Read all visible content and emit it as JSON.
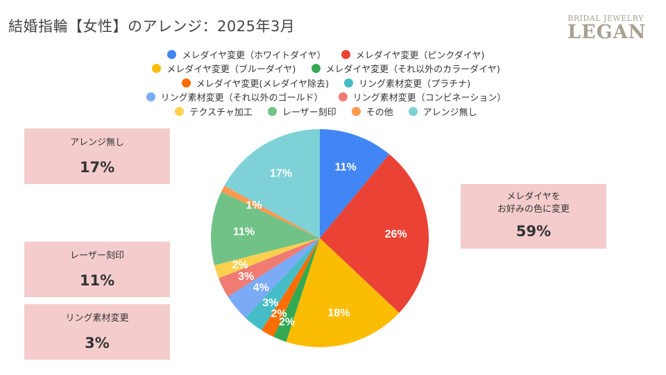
{
  "title": "結婚指輪【女性】のアレンジ：2025年3月",
  "logo": {
    "sub": "BRIDAL JEWELRY",
    "main": "LEGAN"
  },
  "callouts": [
    {
      "label": "アレンジ無し",
      "value": "17%"
    },
    {
      "label": "レーザー刻印",
      "value": "11%"
    },
    {
      "label": "リング素材変更",
      "value": "3%"
    },
    {
      "label_line1": "メレダイヤを",
      "label_line2": "お好みの色に変更",
      "value": "59%"
    }
  ],
  "chart_data": {
    "type": "pie",
    "title": "結婚指輪【女性】のアレンジ：2025年3月",
    "legend_position": "top",
    "categories": [
      "メレダイヤ変更（ホワイトダイヤ）",
      "メレダイヤ変更（ピンクダイヤ)",
      "メレダイヤ変更（ブルーダイヤ)",
      "メレダイヤ変更（それ以外のカラーダイヤ)",
      "メレダイヤ変更(メレダイヤ除去)",
      "リング素材変更（プラチナ)",
      "リング素材変更（それ以外のゴールド）",
      "リング素材変更（コンビネーション）",
      "テクスチャ加工",
      "レーザー刻印",
      "その他",
      "アレンジ無し"
    ],
    "values": [
      11,
      26,
      18,
      2,
      2,
      3,
      4,
      3,
      2,
      11,
      1,
      17
    ],
    "labels": [
      "11%",
      "26%",
      "18%",
      "2%",
      "2%",
      "3%",
      "4%",
      "3%",
      "2%",
      "11%",
      "1%",
      "17%"
    ],
    "colors": [
      "#4285f4",
      "#ea4335",
      "#fbbc04",
      "#34a853",
      "#ff6d01",
      "#46bdc6",
      "#7baaf7",
      "#f07b72",
      "#fcd04f",
      "#71c287",
      "#ff994d",
      "#7ed1d7"
    ]
  }
}
